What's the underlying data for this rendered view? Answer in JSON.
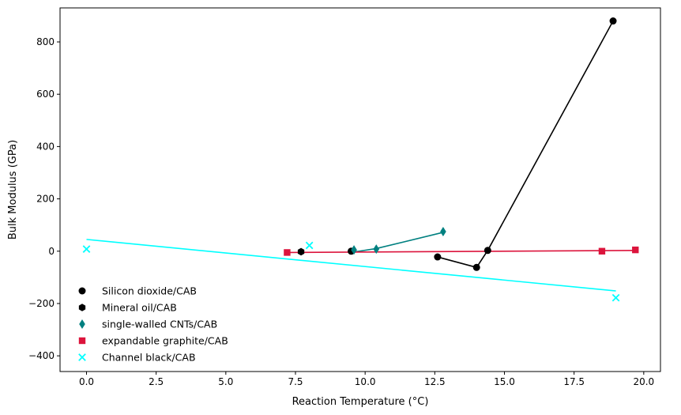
{
  "chart_data": {
    "type": "scatter",
    "title": "",
    "xlabel": "Reaction Temperature (°C)",
    "ylabel": "Bulk Modulus (GPa)",
    "xlim": [
      -0.95,
      20.6
    ],
    "ylim": [
      -460,
      930
    ],
    "xticks": [
      0.0,
      2.5,
      5.0,
      7.5,
      10.0,
      12.5,
      15.0,
      17.5,
      20.0
    ],
    "xtick_labels": [
      "0.0",
      "2.5",
      "5.0",
      "7.5",
      "10.0",
      "12.5",
      "15.0",
      "17.5",
      "20.0"
    ],
    "yticks": [
      -400,
      -200,
      0,
      200,
      400,
      600,
      800
    ],
    "ytick_labels": [
      "−400",
      "−200",
      "0",
      "200",
      "400",
      "600",
      "800"
    ],
    "grid": false,
    "legend_position": "lower-left",
    "series": [
      {
        "name": "Silicon dioxide/CAB",
        "marker": "circle",
        "color": "#000000",
        "points": [
          [
            9.5,
            0
          ],
          [
            12.6,
            -22
          ],
          [
            14.0,
            -62
          ],
          [
            14.4,
            3
          ],
          [
            18.9,
            880
          ]
        ]
      },
      {
        "name": "Mineral oil/CAB",
        "marker": "hexagon",
        "color": "#000000",
        "points": [
          [
            7.7,
            -2
          ]
        ]
      },
      {
        "name": "single-walled CNTs/CAB",
        "marker": "thin_diamond",
        "color": "#008080",
        "points": [
          [
            9.6,
            5
          ],
          [
            10.4,
            8
          ],
          [
            12.8,
            75
          ]
        ]
      },
      {
        "name": "expandable graphite/CAB",
        "marker": "square",
        "color": "#dc143c",
        "points": [
          [
            7.2,
            -5
          ],
          [
            18.5,
            0
          ],
          [
            19.7,
            5
          ]
        ]
      },
      {
        "name": "Channel black/CAB",
        "marker": "x",
        "color": "#00ffff",
        "points": [
          [
            0.0,
            8
          ],
          [
            8.0,
            22
          ],
          [
            19.0,
            -178
          ]
        ]
      }
    ],
    "lines": [
      {
        "color": "#000000",
        "points": [
          [
            12.6,
            -22
          ],
          [
            14.0,
            -62
          ],
          [
            14.4,
            3
          ],
          [
            18.9,
            880
          ]
        ]
      },
      {
        "color": "#008080",
        "points": [
          [
            9.6,
            -3
          ],
          [
            10.4,
            10
          ],
          [
            12.8,
            72
          ]
        ]
      },
      {
        "color": "#dc143c",
        "points": [
          [
            7.2,
            -5
          ],
          [
            19.7,
            3
          ]
        ]
      },
      {
        "color": "#00ffff",
        "points": [
          [
            0.0,
            45
          ],
          [
            19.0,
            -152
          ]
        ]
      }
    ]
  }
}
